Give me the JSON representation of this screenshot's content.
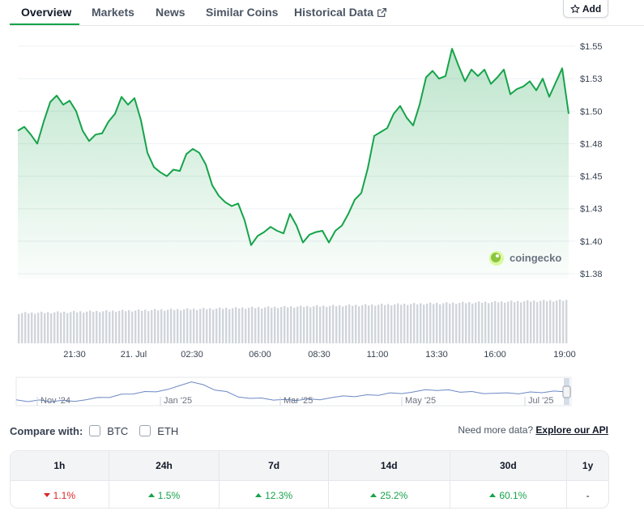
{
  "tabs": [
    {
      "label": "Overview",
      "active": true
    },
    {
      "label": "Markets"
    },
    {
      "label": "News"
    },
    {
      "label": "Similar Coins"
    },
    {
      "label": "Historical Data"
    }
  ],
  "add_label": "Add",
  "watermark": "coingecko",
  "chart_data": {
    "type": "area",
    "y_ticks": [
      "$1.55",
      "$1.53",
      "$1.50",
      "$1.48",
      "$1.45",
      "$1.43",
      "$1.40",
      "$1.38"
    ],
    "ylim": [
      1.38,
      1.555
    ],
    "x_ticks": [
      "21:30",
      "21. Jul",
      "02:30",
      "06:00",
      "08:30",
      "11:00",
      "13:30",
      "16:00",
      "19:00"
    ],
    "values": [
      1.49,
      1.493,
      1.487,
      1.48,
      1.497,
      1.512,
      1.517,
      1.51,
      1.513,
      1.505,
      1.49,
      1.482,
      1.487,
      1.488,
      1.497,
      1.503,
      1.516,
      1.51,
      1.515,
      1.498,
      1.473,
      1.462,
      1.458,
      1.455,
      1.46,
      1.459,
      1.472,
      1.476,
      1.473,
      1.464,
      1.448,
      1.44,
      1.435,
      1.432,
      1.434,
      1.421,
      1.402,
      1.409,
      1.412,
      1.416,
      1.413,
      1.411,
      1.426,
      1.417,
      1.404,
      1.41,
      1.412,
      1.413,
      1.404,
      1.413,
      1.417,
      1.426,
      1.437,
      1.442,
      1.461,
      1.486,
      1.489,
      1.492,
      1.503,
      1.509,
      1.5,
      1.494,
      1.51,
      1.531,
      1.536,
      1.53,
      1.532,
      1.553,
      1.54,
      1.528,
      1.537,
      1.532,
      1.537,
      1.526,
      1.531,
      1.537,
      1.518,
      1.522,
      1.524,
      1.528,
      1.521,
      1.53,
      1.516,
      1.527,
      1.538,
      1.503
    ],
    "volume_color": "#d1d5db",
    "line_color": "#16a34a"
  },
  "navigator": {
    "labels": [
      "Nov '24",
      "Jan '25",
      "Mar '25",
      "May '25",
      "Jul '25"
    ],
    "values": [
      0.15,
      0.14,
      0.16,
      0.15,
      0.17,
      0.18,
      0.2,
      0.24,
      0.3,
      0.38,
      0.45,
      0.5,
      0.55,
      0.6,
      0.7,
      0.9,
      0.75,
      0.6,
      0.5,
      0.35,
      0.25,
      0.22,
      0.2,
      0.18,
      0.2,
      0.22,
      0.24,
      0.28,
      0.3,
      0.33,
      0.36,
      0.4,
      0.45,
      0.48,
      0.5,
      0.54,
      0.57,
      0.55,
      0.52,
      0.5,
      0.48,
      0.45,
      0.42,
      0.44,
      0.47,
      0.5,
      0.52,
      0.55
    ]
  },
  "compare": {
    "label": "Compare with:",
    "options": [
      "BTC",
      "ETH"
    ],
    "need_text": "Need more data?",
    "api_link": "Explore our API"
  },
  "performance": {
    "headers": [
      "1h",
      "24h",
      "7d",
      "14d",
      "30d",
      "1y"
    ],
    "values": [
      {
        "text": "1.1%",
        "dir": "down"
      },
      {
        "text": "1.5%",
        "dir": "up"
      },
      {
        "text": "12.3%",
        "dir": "up"
      },
      {
        "text": "25.2%",
        "dir": "up"
      },
      {
        "text": "60.1%",
        "dir": "up"
      },
      {
        "text": "-",
        "dir": "none"
      }
    ]
  }
}
